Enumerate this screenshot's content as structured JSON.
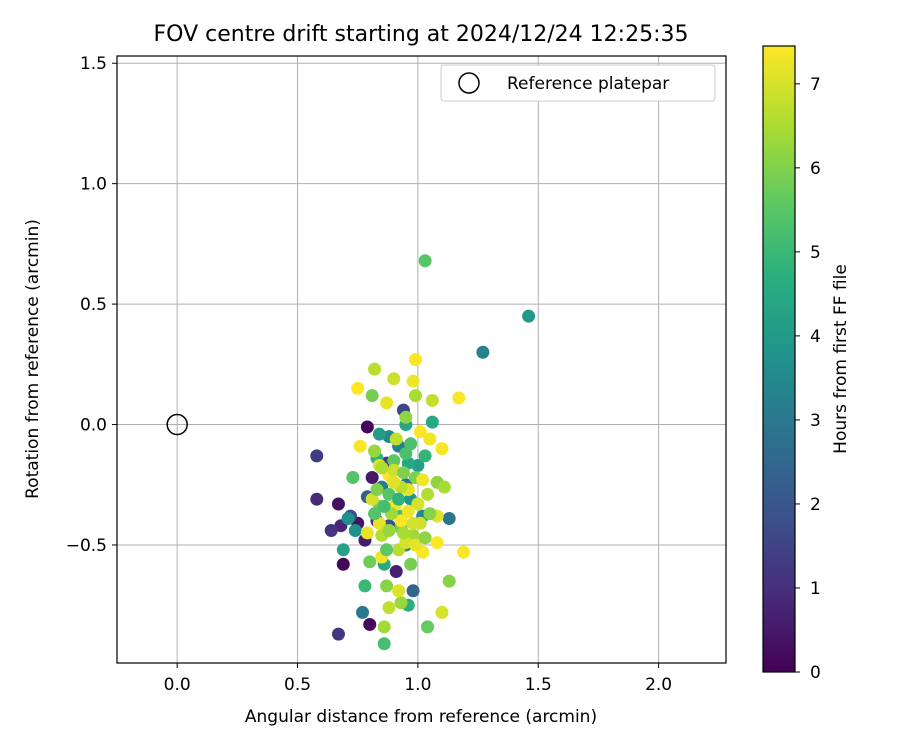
{
  "chart_data": {
    "type": "scatter",
    "title": "FOV centre drift starting at 2024/12/24 12:25:35",
    "xlabel": "Angular distance from reference (arcmin)",
    "ylabel": "Rotation from reference (arcmin)",
    "xlim": [
      -0.25,
      2.28
    ],
    "ylim": [
      -0.99,
      1.53
    ],
    "xticks": [
      0.0,
      0.5,
      1.0,
      1.5,
      2.0
    ],
    "xtick_labels": [
      "0.0",
      "0.5",
      "1.0",
      "1.5",
      "2.0"
    ],
    "yticks": [
      -0.5,
      0.0,
      0.5,
      1.0,
      1.5
    ],
    "ytick_labels": [
      "−0.5",
      "0.0",
      "0.5",
      "1.0",
      "1.5"
    ],
    "grid": true,
    "legend": {
      "position": "top-right",
      "entries": [
        {
          "label": "Reference platepar",
          "marker": "open-circle"
        }
      ]
    },
    "reference_point": {
      "x": 0.0,
      "y": 0.0
    },
    "colorbar": {
      "label": "Hours from first FF file",
      "colormap": "viridis",
      "range": [
        0,
        7.45
      ],
      "ticks": [
        0,
        1,
        2,
        3,
        4,
        5,
        6,
        7
      ],
      "tick_labels": [
        "0",
        "1",
        "2",
        "3",
        "4",
        "5",
        "6",
        "7"
      ]
    },
    "points": [
      {
        "x": 0.79,
        "y": -0.01,
        "t": 0.1
      },
      {
        "x": 0.69,
        "y": -0.58,
        "t": 0.15
      },
      {
        "x": 0.8,
        "y": -0.83,
        "t": 0.2
      },
      {
        "x": 0.67,
        "y": -0.33,
        "t": 0.3
      },
      {
        "x": 0.75,
        "y": -0.41,
        "t": 0.4
      },
      {
        "x": 0.81,
        "y": -0.22,
        "t": 0.5
      },
      {
        "x": 0.78,
        "y": -0.48,
        "t": 0.6
      },
      {
        "x": 0.91,
        "y": -0.61,
        "t": 0.7
      },
      {
        "x": 0.68,
        "y": -0.42,
        "t": 0.8
      },
      {
        "x": 0.58,
        "y": -0.31,
        "t": 0.9
      },
      {
        "x": 0.83,
        "y": -0.4,
        "t": 1.0
      },
      {
        "x": 0.64,
        "y": -0.44,
        "t": 1.1
      },
      {
        "x": 0.67,
        "y": -0.87,
        "t": 1.2
      },
      {
        "x": 0.58,
        "y": -0.13,
        "t": 1.3
      },
      {
        "x": 0.87,
        "y": -0.16,
        "t": 1.4
      },
      {
        "x": 0.94,
        "y": 0.06,
        "t": 1.6
      },
      {
        "x": 0.72,
        "y": -0.38,
        "t": 1.8
      },
      {
        "x": 0.88,
        "y": -0.42,
        "t": 2.0
      },
      {
        "x": 0.79,
        "y": -0.3,
        "t": 2.2
      },
      {
        "x": 0.98,
        "y": -0.69,
        "t": 2.5
      },
      {
        "x": 0.95,
        "y": -0.25,
        "t": 2.7
      },
      {
        "x": 1.13,
        "y": -0.39,
        "t": 2.9
      },
      {
        "x": 0.77,
        "y": -0.78,
        "t": 3.0
      },
      {
        "x": 0.85,
        "y": -0.26,
        "t": 3.1
      },
      {
        "x": 0.92,
        "y": -0.09,
        "t": 3.2
      },
      {
        "x": 1.27,
        "y": 0.3,
        "t": 3.3
      },
      {
        "x": 1.02,
        "y": -0.38,
        "t": 3.4
      },
      {
        "x": 0.88,
        "y": -0.05,
        "t": 3.5
      },
      {
        "x": 0.95,
        "y": -0.5,
        "t": 3.6
      },
      {
        "x": 0.71,
        "y": -0.39,
        "t": 3.7
      },
      {
        "x": 0.74,
        "y": -0.44,
        "t": 3.8
      },
      {
        "x": 0.97,
        "y": -0.31,
        "t": 3.9
      },
      {
        "x": 1.46,
        "y": 0.45,
        "t": 4.0
      },
      {
        "x": 0.84,
        "y": -0.04,
        "t": 4.1
      },
      {
        "x": 1.0,
        "y": -0.17,
        "t": 4.2
      },
      {
        "x": 0.69,
        "y": -0.52,
        "t": 4.3
      },
      {
        "x": 0.95,
        "y": 0.0,
        "t": 4.4
      },
      {
        "x": 1.06,
        "y": 0.01,
        "t": 4.5
      },
      {
        "x": 0.86,
        "y": -0.58,
        "t": 4.6
      },
      {
        "x": 0.96,
        "y": -0.75,
        "t": 4.7
      },
      {
        "x": 0.83,
        "y": -0.14,
        "t": 4.8
      },
      {
        "x": 1.03,
        "y": -0.13,
        "t": 4.9
      },
      {
        "x": 0.78,
        "y": -0.67,
        "t": 5.0
      },
      {
        "x": 0.93,
        "y": -0.38,
        "t": 5.1
      },
      {
        "x": 0.86,
        "y": -0.91,
        "t": 5.2
      },
      {
        "x": 0.97,
        "y": -0.08,
        "t": 5.3
      },
      {
        "x": 0.73,
        "y": -0.22,
        "t": 5.4
      },
      {
        "x": 0.88,
        "y": -0.29,
        "t": 5.5
      },
      {
        "x": 1.03,
        "y": 0.68,
        "t": 5.5
      },
      {
        "x": 0.9,
        "y": -0.15,
        "t": 5.6
      },
      {
        "x": 1.04,
        "y": -0.84,
        "t": 5.7
      },
      {
        "x": 0.8,
        "y": -0.57,
        "t": 5.8
      },
      {
        "x": 0.93,
        "y": -0.43,
        "t": 5.8
      },
      {
        "x": 0.81,
        "y": 0.12,
        "t": 5.9
      },
      {
        "x": 0.99,
        "y": -0.22,
        "t": 6.0
      },
      {
        "x": 0.84,
        "y": -0.34,
        "t": 6.0
      },
      {
        "x": 1.13,
        "y": -0.65,
        "t": 6.1
      },
      {
        "x": 0.87,
        "y": -0.67,
        "t": 6.1
      },
      {
        "x": 0.95,
        "y": 0.03,
        "t": 6.2
      },
      {
        "x": 1.08,
        "y": -0.24,
        "t": 6.2
      },
      {
        "x": 0.93,
        "y": -0.74,
        "t": 6.3
      },
      {
        "x": 0.82,
        "y": -0.11,
        "t": 6.3
      },
      {
        "x": 0.98,
        "y": -0.46,
        "t": 6.4
      },
      {
        "x": 0.86,
        "y": -0.84,
        "t": 6.4
      },
      {
        "x": 1.11,
        "y": -0.26,
        "t": 6.5
      },
      {
        "x": 0.99,
        "y": 0.12,
        "t": 6.5
      },
      {
        "x": 0.85,
        "y": -0.46,
        "t": 6.6
      },
      {
        "x": 1.04,
        "y": -0.29,
        "t": 6.6
      },
      {
        "x": 0.92,
        "y": -0.52,
        "t": 6.7
      },
      {
        "x": 0.82,
        "y": 0.23,
        "t": 6.7
      },
      {
        "x": 1.06,
        "y": 0.1,
        "t": 6.8
      },
      {
        "x": 0.88,
        "y": -0.76,
        "t": 6.8
      },
      {
        "x": 1.01,
        "y": -0.41,
        "t": 6.9
      },
      {
        "x": 0.9,
        "y": 0.19,
        "t": 6.9
      },
      {
        "x": 0.81,
        "y": -0.31,
        "t": 7.0
      },
      {
        "x": 1.1,
        "y": -0.78,
        "t": 7.0
      },
      {
        "x": 0.95,
        "y": -0.49,
        "t": 7.0
      },
      {
        "x": 1.08,
        "y": -0.38,
        "t": 7.1
      },
      {
        "x": 0.84,
        "y": -0.17,
        "t": 7.1
      },
      {
        "x": 0.92,
        "y": -0.69,
        "t": 7.1
      },
      {
        "x": 0.87,
        "y": 0.09,
        "t": 7.2
      },
      {
        "x": 0.96,
        "y": -0.27,
        "t": 7.2
      },
      {
        "x": 0.79,
        "y": -0.45,
        "t": 7.2
      },
      {
        "x": 1.05,
        "y": -0.06,
        "t": 7.3
      },
      {
        "x": 0.85,
        "y": -0.55,
        "t": 7.3
      },
      {
        "x": 0.98,
        "y": 0.18,
        "t": 7.3
      },
      {
        "x": 0.91,
        "y": -0.33,
        "t": 7.3
      },
      {
        "x": 1.02,
        "y": -0.53,
        "t": 7.4
      },
      {
        "x": 0.76,
        "y": -0.09,
        "t": 7.4
      },
      {
        "x": 1.17,
        "y": 0.11,
        "t": 7.4
      },
      {
        "x": 0.99,
        "y": 0.27,
        "t": 7.4
      },
      {
        "x": 1.19,
        "y": -0.53,
        "t": 7.4
      },
      {
        "x": 0.88,
        "y": -0.21,
        "t": 7.4
      },
      {
        "x": 1.1,
        "y": -0.1,
        "t": 7.4
      },
      {
        "x": 0.75,
        "y": 0.15,
        "t": 7.45
      },
      {
        "x": 0.93,
        "y": -0.4,
        "t": 7.45
      },
      {
        "x": 1.08,
        "y": -0.49,
        "t": 7.45
      },
      {
        "x": 0.84,
        "y": -0.41,
        "t": 7.2
      },
      {
        "x": 0.89,
        "y": -0.37,
        "t": 6.4
      },
      {
        "x": 0.97,
        "y": -0.58,
        "t": 5.9
      },
      {
        "x": 0.93,
        "y": -0.26,
        "t": 6.7
      },
      {
        "x": 1.0,
        "y": -0.33,
        "t": 7.0
      },
      {
        "x": 0.86,
        "y": -0.34,
        "t": 5.2
      },
      {
        "x": 0.9,
        "y": -0.19,
        "t": 6.9
      },
      {
        "x": 0.96,
        "y": -0.16,
        "t": 4.5
      },
      {
        "x": 1.02,
        "y": -0.23,
        "t": 7.3
      },
      {
        "x": 0.83,
        "y": -0.27,
        "t": 6.0
      },
      {
        "x": 0.94,
        "y": -0.45,
        "t": 6.5
      },
      {
        "x": 0.99,
        "y": -0.5,
        "t": 7.2
      },
      {
        "x": 0.87,
        "y": -0.52,
        "t": 5.6
      },
      {
        "x": 1.05,
        "y": -0.37,
        "t": 6.1
      },
      {
        "x": 0.91,
        "y": -0.06,
        "t": 6.8
      },
      {
        "x": 0.95,
        "y": -0.12,
        "t": 5.3
      },
      {
        "x": 1.01,
        "y": -0.03,
        "t": 7.4
      },
      {
        "x": 0.85,
        "y": -0.18,
        "t": 6.6
      },
      {
        "x": 0.92,
        "y": -0.31,
        "t": 4.8
      },
      {
        "x": 0.98,
        "y": -0.41,
        "t": 7.0
      },
      {
        "x": 0.88,
        "y": -0.44,
        "t": 6.3
      },
      {
        "x": 0.96,
        "y": -0.36,
        "t": 7.3
      },
      {
        "x": 1.03,
        "y": -0.47,
        "t": 6.2
      },
      {
        "x": 0.82,
        "y": -0.37,
        "t": 5.4
      },
      {
        "x": 0.9,
        "y": -0.24,
        "t": 7.1
      },
      {
        "x": 0.94,
        "y": -0.2,
        "t": 6.0
      }
    ]
  }
}
